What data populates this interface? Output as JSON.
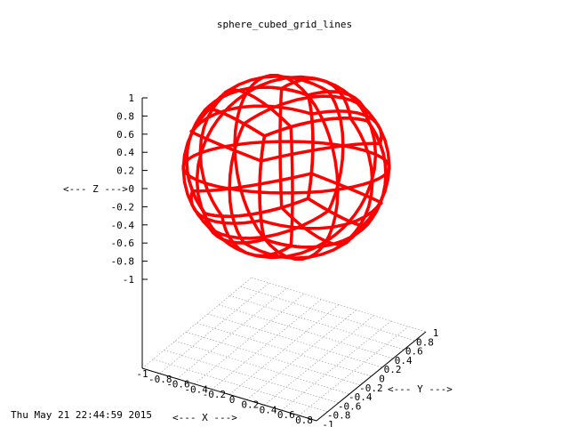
{
  "chart_data": {
    "type": "surface-3d",
    "title": "sphere_cubed_grid_lines",
    "timestamp": "Thu May 21 22:44:59 2015",
    "xlabel": "<--- X --->",
    "ylabel": "<--- Y --->",
    "zlabel": "<--- Z --->",
    "xlim": [
      -1,
      0.8
    ],
    "ylim": [
      -1,
      0.8
    ],
    "zlim": [
      -1,
      1
    ],
    "x_ticks": [
      "-1",
      "-0.8",
      "-0.6",
      "-0.4",
      "-0.2",
      "0",
      "0.2",
      "0.4",
      "0.6",
      "0.8"
    ],
    "y_ticks": [
      "-1",
      "-0.8",
      "-0.6",
      "-0.4",
      "-0.2",
      "0",
      "0.2",
      "0.4",
      "0.6",
      "0.8",
      "1"
    ],
    "z_ticks": [
      "1",
      "0.8",
      "0.6",
      "0.4",
      "0.2",
      "0",
      "-0.2",
      "-0.4",
      "-0.6",
      "-0.8",
      "-1"
    ],
    "series": [
      {
        "shape": "cubed-sphere",
        "radius": 1,
        "grid_subdivisions": 4,
        "color": "#ff0000"
      }
    ],
    "grid": true,
    "colors": {
      "wireframe": "#ff0000",
      "grid": "#a0a0a0",
      "axis": "#000000"
    }
  }
}
